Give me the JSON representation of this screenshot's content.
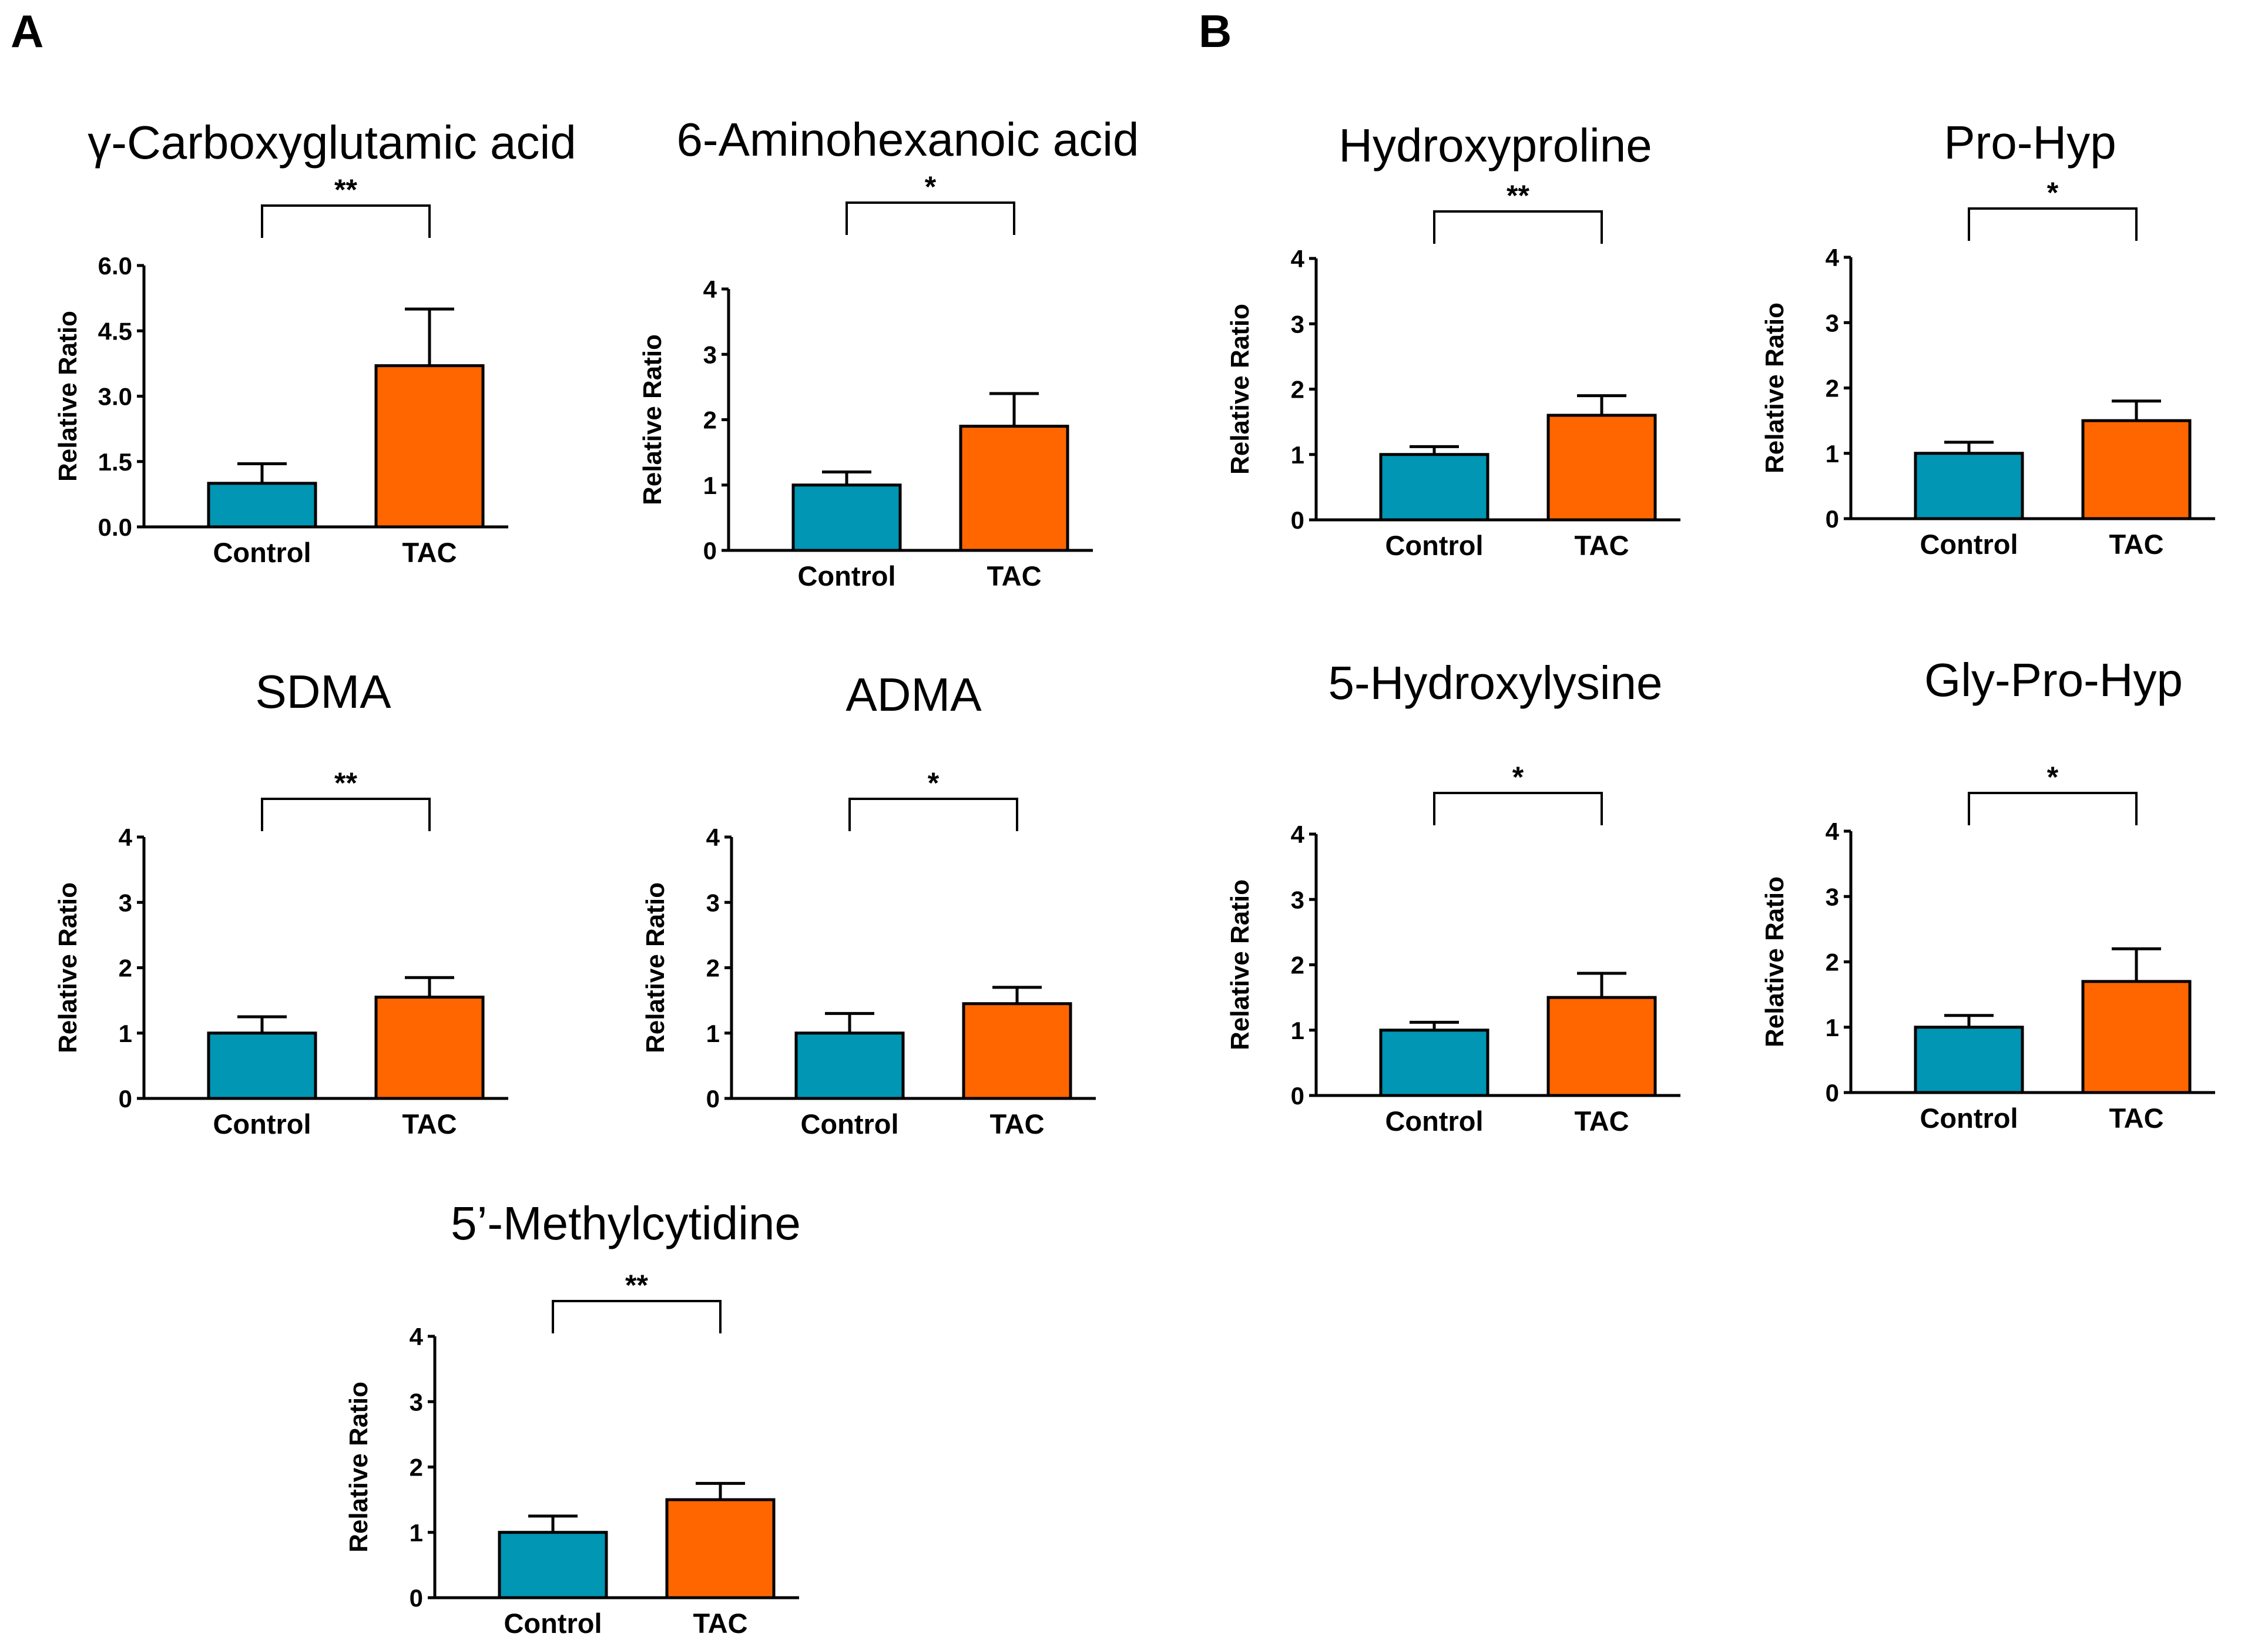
{
  "figure": {
    "panel_a_label": "A",
    "panel_b_label": "B"
  },
  "colors": {
    "control": "#0096B4",
    "tac": "#FF6600",
    "axis": "#000000"
  },
  "chart_data": [
    {
      "type": "bar",
      "panel": "A",
      "title": "γ-Carboxyglutamic acid",
      "ylabel": "Relative Ratio",
      "categories": [
        "Control",
        "TAC"
      ],
      "values": [
        1.0,
        3.7
      ],
      "errors": [
        0.45,
        1.3
      ],
      "ylim": [
        0,
        6
      ],
      "yticks": [
        0,
        1.5,
        3,
        4.5,
        6
      ],
      "ytick_labels": [
        "0.0",
        "1.5",
        "3.0",
        "4.5",
        "6.0"
      ],
      "significance": "**"
    },
    {
      "type": "bar",
      "panel": "A",
      "title": "6-Aminohexanoic acid",
      "ylabel": "Relative Ratio",
      "categories": [
        "Control",
        "TAC"
      ],
      "values": [
        1.0,
        1.9
      ],
      "errors": [
        0.2,
        0.5
      ],
      "ylim": [
        0,
        4
      ],
      "yticks": [
        0,
        1,
        2,
        3,
        4
      ],
      "ytick_labels": [
        "0",
        "1",
        "2",
        "3",
        "4"
      ],
      "significance": "*"
    },
    {
      "type": "bar",
      "panel": "A",
      "title": "SDMA",
      "ylabel": "Relative Ratio",
      "categories": [
        "Control",
        "TAC"
      ],
      "values": [
        1.0,
        1.55
      ],
      "errors": [
        0.25,
        0.3
      ],
      "ylim": [
        0,
        4
      ],
      "yticks": [
        0,
        1,
        2,
        3,
        4
      ],
      "ytick_labels": [
        "0",
        "1",
        "2",
        "3",
        "4"
      ],
      "significance": "**"
    },
    {
      "type": "bar",
      "panel": "A",
      "title": "ADMA",
      "ylabel": "Relative Ratio",
      "categories": [
        "Control",
        "TAC"
      ],
      "values": [
        1.0,
        1.45
      ],
      "errors": [
        0.3,
        0.25
      ],
      "ylim": [
        0,
        4
      ],
      "yticks": [
        0,
        1,
        2,
        3,
        4
      ],
      "ytick_labels": [
        "0",
        "1",
        "2",
        "3",
        "4"
      ],
      "significance": "*"
    },
    {
      "type": "bar",
      "panel": "A",
      "title": "5’-Methylcytidine",
      "ylabel": "Relative Ratio",
      "categories": [
        "Control",
        "TAC"
      ],
      "values": [
        1.0,
        1.5
      ],
      "errors": [
        0.25,
        0.25
      ],
      "ylim": [
        0,
        4
      ],
      "yticks": [
        0,
        1,
        2,
        3,
        4
      ],
      "ytick_labels": [
        "0",
        "1",
        "2",
        "3",
        "4"
      ],
      "significance": "**"
    },
    {
      "type": "bar",
      "panel": "B",
      "title": "Hydroxyproline",
      "ylabel": "Relative Ratio",
      "categories": [
        "Control",
        "TAC"
      ],
      "values": [
        1.0,
        1.6
      ],
      "errors": [
        0.12,
        0.3
      ],
      "ylim": [
        0,
        4
      ],
      "yticks": [
        0,
        1,
        2,
        3,
        4
      ],
      "ytick_labels": [
        "0",
        "1",
        "2",
        "3",
        "4"
      ],
      "significance": "**"
    },
    {
      "type": "bar",
      "panel": "B",
      "title": "Pro-Hyp",
      "ylabel": "Relative Ratio",
      "categories": [
        "Control",
        "TAC"
      ],
      "values": [
        1.0,
        1.5
      ],
      "errors": [
        0.17,
        0.3
      ],
      "ylim": [
        0,
        4
      ],
      "yticks": [
        0,
        1,
        2,
        3,
        4
      ],
      "ytick_labels": [
        "0",
        "1",
        "2",
        "3",
        "4"
      ],
      "significance": "*"
    },
    {
      "type": "bar",
      "panel": "B",
      "title": "5-Hydroxylysine",
      "ylabel": "Relative Ratio",
      "categories": [
        "Control",
        "TAC"
      ],
      "values": [
        1.0,
        1.5
      ],
      "errors": [
        0.12,
        0.37
      ],
      "ylim": [
        0,
        4
      ],
      "yticks": [
        0,
        1,
        2,
        3,
        4
      ],
      "ytick_labels": [
        "0",
        "1",
        "2",
        "3",
        "4"
      ],
      "significance": "*"
    },
    {
      "type": "bar",
      "panel": "B",
      "title": "Gly-Pro-Hyp",
      "ylabel": "Relative Ratio",
      "categories": [
        "Control",
        "TAC"
      ],
      "values": [
        1.0,
        1.7
      ],
      "errors": [
        0.18,
        0.5
      ],
      "ylim": [
        0,
        4
      ],
      "yticks": [
        0,
        1,
        2,
        3,
        4
      ],
      "ytick_labels": [
        "0",
        "1",
        "2",
        "3",
        "4"
      ],
      "significance": "*"
    }
  ]
}
